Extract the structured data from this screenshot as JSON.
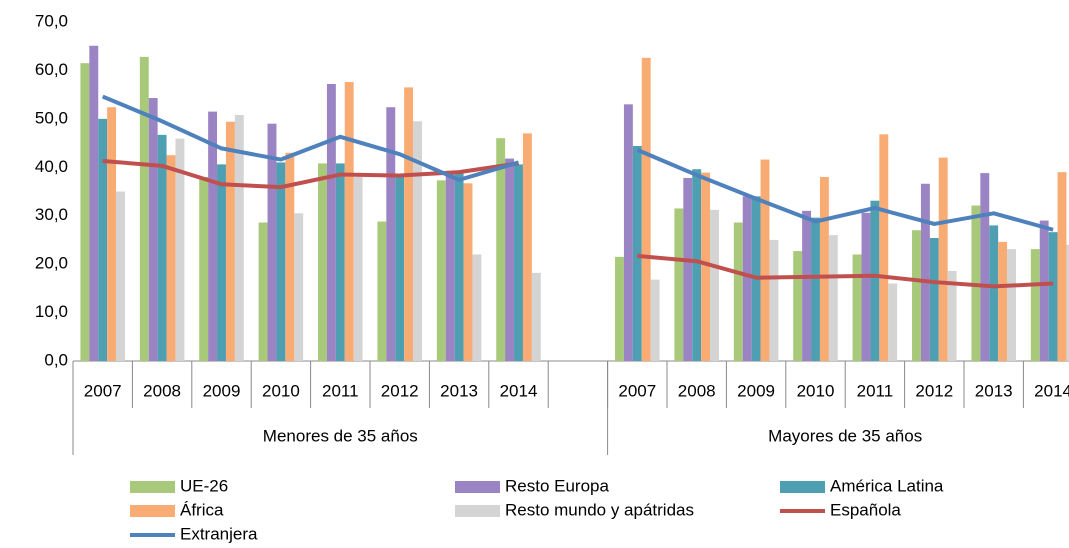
{
  "chart_data": {
    "type": "bar",
    "categories": [
      "2007",
      "2008",
      "2009",
      "2010",
      "2011",
      "2012",
      "2013",
      "2014",
      null,
      "2007",
      "2008",
      "2009",
      "2010",
      "2011",
      "2012",
      "2013",
      "2014"
    ],
    "groups": [
      "Menores de 35 años",
      "Mayores de 35 años"
    ],
    "ylim": [
      0,
      70
    ],
    "yticks": [
      {
        "value": 0,
        "label": "0,0"
      },
      {
        "value": 10,
        "label": "10,0"
      },
      {
        "value": 20,
        "label": "20,0"
      },
      {
        "value": 30,
        "label": "30,0"
      },
      {
        "value": 40,
        "label": "40,0"
      },
      {
        "value": 50,
        "label": "50,0"
      },
      {
        "value": 60,
        "label": "60,0"
      },
      {
        "value": 70,
        "label": "70,0"
      }
    ],
    "grid": false,
    "series": [
      {
        "name": "UE-26",
        "type": "bar",
        "color": "#a9c97a",
        "values": [
          61.5,
          62.8,
          38,
          28.6,
          40.8,
          28.8,
          37.3,
          46,
          null,
          21.5,
          31.5,
          28.6,
          22.7,
          22,
          27,
          32.1,
          23.1
        ]
      },
      {
        "name": "Resto Europa",
        "type": "bar",
        "color": "#9a84c4",
        "values": [
          65.1,
          54.3,
          51.5,
          49,
          57.2,
          52.4,
          38.5,
          41.8,
          null,
          53,
          37.8,
          34,
          31,
          30.6,
          36.6,
          38.8,
          29
        ]
      },
      {
        "name": "América Latina",
        "type": "bar",
        "color": "#4f9fb3",
        "values": [
          50,
          46.7,
          40.6,
          41,
          40.8,
          38,
          39,
          40.6,
          null,
          44.4,
          39.6,
          34,
          29.6,
          33.1,
          25.4,
          28,
          26.6
        ]
      },
      {
        "name": "África",
        "type": "bar",
        "color": "#f9ab74",
        "values": [
          52.4,
          42.5,
          49.4,
          43,
          57.6,
          56.5,
          36.7,
          47,
          null,
          62.6,
          38.9,
          41.6,
          38,
          46.8,
          42,
          24.6,
          39
        ]
      },
      {
        "name": "Resto mundo y apátridas",
        "type": "bar",
        "color": "#d4d4d4",
        "values": [
          35,
          45.9,
          50.8,
          30.5,
          38,
          49.5,
          22,
          18.2,
          null,
          16.8,
          31.2,
          25,
          26,
          16,
          18.6,
          23.1,
          24
        ]
      },
      {
        "name": "Española",
        "type": "line",
        "color": "#c0504d",
        "values": [
          41.3,
          40.3,
          36.5,
          35.9,
          38.5,
          38.3,
          39,
          40.8,
          null,
          21.7,
          20.6,
          17.2,
          17.4,
          17.6,
          16.3,
          15.4,
          16
        ]
      },
      {
        "name": "Extranjera",
        "type": "line",
        "color": "#4f81bd",
        "values": [
          54.6,
          49.5,
          43.9,
          41.6,
          46.3,
          42.7,
          37.4,
          41,
          null,
          43.6,
          38.4,
          33.5,
          28.8,
          31.6,
          28.3,
          30.5,
          27.1
        ]
      }
    ]
  }
}
